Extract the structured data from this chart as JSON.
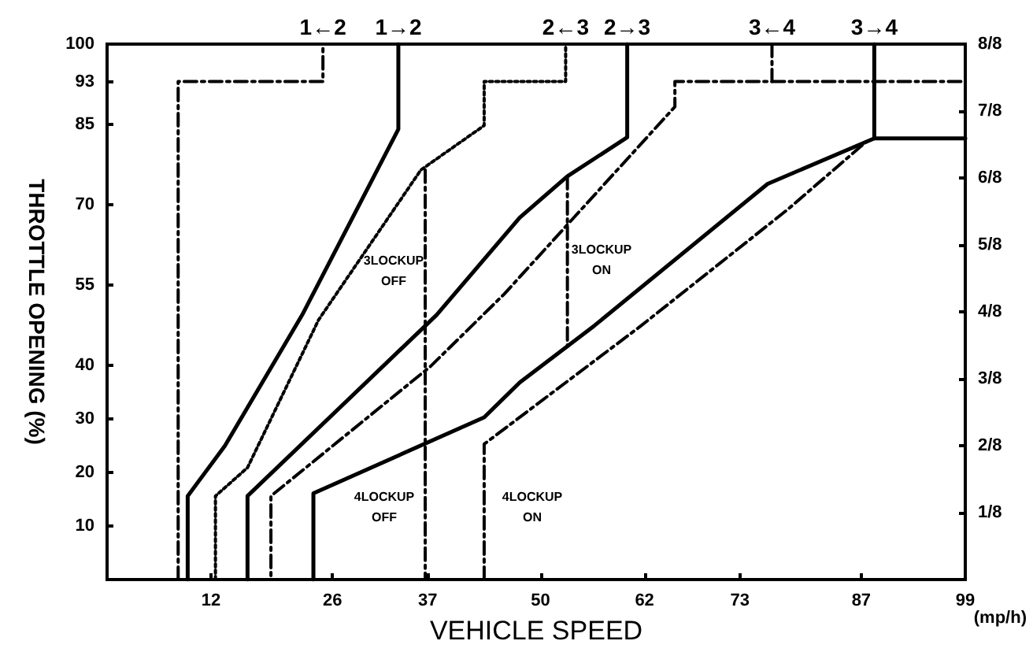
{
  "chart_data": {
    "type": "line",
    "xlabel": "VEHICLE SPEED",
    "ylabel": "THROTTLE OPENING (%)",
    "xlim": [
      0,
      99
    ],
    "xticks": [
      12,
      26,
      37,
      50,
      62,
      73,
      87,
      99
    ],
    "ylim": [
      0,
      100
    ],
    "yticks": [
      10,
      20,
      30,
      40,
      55,
      70,
      85,
      93,
      100
    ],
    "y2lim": [
      0,
      1
    ],
    "y2ticks": [
      {
        "value": 0.125,
        "label": "1/8"
      },
      {
        "value": 0.25,
        "label": "2/8"
      },
      {
        "value": 0.375,
        "label": "3/8"
      },
      {
        "value": 0.5,
        "label": "4/8"
      },
      {
        "value": 0.625,
        "label": "5/8"
      },
      {
        "value": 0.75,
        "label": "6/8"
      },
      {
        "value": 0.875,
        "label": "7/8"
      },
      {
        "value": 1,
        "label": "8/8"
      }
    ],
    "marker": "none",
    "series": [
      {
        "name": "1←2",
        "color": "#000000",
        "line_style": "dashed",
        "x": [
          8.2,
          8.2,
          24.9,
          24.9
        ],
        "values": [
          0,
          93,
          93,
          100
        ]
      },
      {
        "name": "1→2",
        "color": "#000000",
        "line_style": "solid",
        "x": [
          33.6,
          33.6,
          22.5,
          13.6,
          9.3,
          9.3
        ],
        "values": [
          100,
          84.1,
          49.4,
          25,
          15.6,
          0
        ]
      },
      {
        "name": "2←3",
        "color": "#000000",
        "line_style": "dotted",
        "x": [
          12.5,
          12.5,
          16.2,
          24.4,
          36.2,
          43.5,
          43.5,
          52.9,
          52.9
        ],
        "values": [
          0,
          15.6,
          20.9,
          48.5,
          76.5,
          84.8,
          93,
          93,
          100
        ]
      },
      {
        "name": "2→3",
        "color": "#000000",
        "line_style": "solid",
        "x": [
          60,
          60,
          53.1,
          47.6,
          38,
          16.2,
          16.2
        ],
        "values": [
          100,
          82.6,
          75.3,
          67.6,
          49.4,
          15.6,
          0
        ]
      },
      {
        "name": "3←4",
        "color": "#000000",
        "line_style": "dashed",
        "x": [
          76.7,
          76.7,
          65.5,
          65.5,
          45.8,
          37.3,
          18.9,
          18.9
        ],
        "values": [
          100,
          93,
          93,
          88.3,
          53.3,
          39.8,
          15.6,
          0
        ]
      },
      {
        "color": "#000000",
        "line_style": "dashed",
        "x": [
          76.7,
          99
        ],
        "values": [
          93,
          93
        ]
      },
      {
        "name": "3→4",
        "color": "#000000",
        "line_style": "solid",
        "x": [
          88.5,
          88.5,
          76.2,
          56.2,
          47.6,
          43.5,
          23.8,
          23.8
        ],
        "values": [
          100,
          82.4,
          73.9,
          47.4,
          36.8,
          30.3,
          16.1,
          0
        ]
      },
      {
        "color": "#000000",
        "line_style": "solid",
        "x": [
          88.5,
          99
        ],
        "values": [
          82.4,
          82.4
        ]
      },
      {
        "color": "#000000",
        "line_style": "dashed",
        "x": [
          36.7,
          36.7
        ],
        "values": [
          76.5,
          0
        ]
      },
      {
        "color": "#000000",
        "line_style": "dashed",
        "x": [
          53.1,
          53.1
        ],
        "values": [
          75.3,
          43.5
        ]
      },
      {
        "color": "#000000",
        "line_style": "dashed",
        "x": [
          43.5,
          43.5,
          61.6,
          78.5,
          87.6
        ],
        "values": [
          0,
          25.3,
          47.4,
          69.1,
          81.8
        ]
      }
    ],
    "annotations": [
      "3LOCKUP OFF",
      "3LOCKUP ON",
      "4LOCKUP OFF",
      "4LOCKUP ON",
      "(mp/h)"
    ]
  }
}
